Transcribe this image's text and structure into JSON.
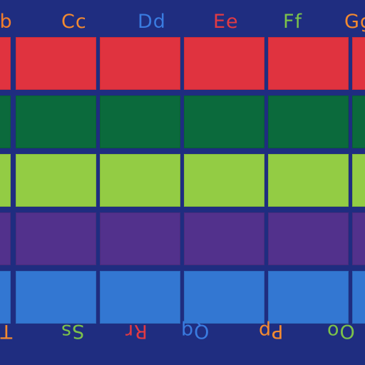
{
  "top_letters": [
    {
      "text": "Bb",
      "color": "#f27d2b"
    },
    {
      "text": "Cc",
      "color": "#f38a30"
    },
    {
      "text": "Dd",
      "color": "#3a7be0"
    },
    {
      "text": "Ee",
      "color": "#e23a43"
    },
    {
      "text": "Ff",
      "color": "#7cc24a"
    },
    {
      "text": "Gg",
      "color": "#f38a30"
    }
  ],
  "bottom_letters": [
    {
      "text": "Tt",
      "color": "#f38a30"
    },
    {
      "text": "Ss",
      "color": "#7cc24a"
    },
    {
      "text": "Rr",
      "color": "#e23a43"
    },
    {
      "text": "Qq",
      "color": "#3a7be0"
    },
    {
      "text": "Pp",
      "color": "#f38a30"
    },
    {
      "text": "Oo",
      "color": "#7cc24a"
    }
  ],
  "rows": [
    {
      "name": "red",
      "color": "#e0333f"
    },
    {
      "name": "green",
      "color": "#0b6a3c"
    },
    {
      "name": "lime",
      "color": "#93cc44"
    },
    {
      "name": "purple",
      "color": "#52318c"
    },
    {
      "name": "blue",
      "color": "#3377d2"
    }
  ]
}
